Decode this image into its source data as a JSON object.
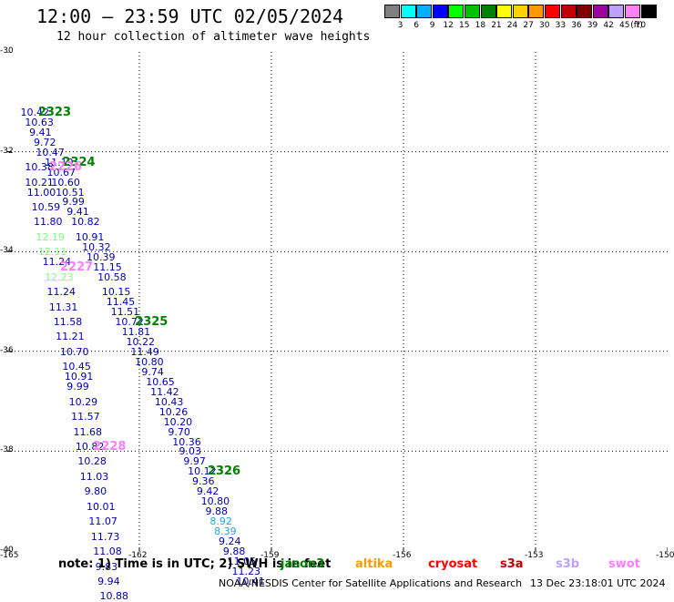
{
  "header": {
    "title": "12:00 — 23:59 UTC 02/05/2024",
    "subtitle": "12 hour collection of altimeter wave heights"
  },
  "legend": {
    "unit": "(ft)",
    "items": [
      {
        "label": "3",
        "color": "#808080"
      },
      {
        "label": "6",
        "color": "#00ffff"
      },
      {
        "label": "9",
        "color": "#00b0ff"
      },
      {
        "label": "12",
        "color": "#0000ff"
      },
      {
        "label": "15",
        "color": "#00ff00"
      },
      {
        "label": "18",
        "color": "#00c000"
      },
      {
        "label": "21",
        "color": "#008000"
      },
      {
        "label": "24",
        "color": "#ffff00"
      },
      {
        "label": "27",
        "color": "#ffd000"
      },
      {
        "label": "30",
        "color": "#ff9900"
      },
      {
        "label": "33",
        "color": "#ff0000"
      },
      {
        "label": "36",
        "color": "#c00000"
      },
      {
        "label": "39",
        "color": "#800000"
      },
      {
        "label": "42",
        "color": "#a000a0"
      },
      {
        "label": "45",
        "color": "#c0a0ff"
      },
      {
        "label": "70",
        "color": "#ff80ff"
      },
      {
        "label": "",
        "color": "#000000"
      }
    ]
  },
  "chart_data": {
    "type": "scatter",
    "title": "12:00 — 23:59 UTC 02/05/2024",
    "xlabel": "",
    "ylabel": "",
    "xlim": [
      -165,
      -150
    ],
    "ylim": [
      -40,
      -30
    ],
    "xticks": [
      -165,
      -162,
      -159,
      -156,
      -153,
      -150
    ],
    "yticks": [
      -30,
      -32,
      -34,
      -36,
      -38,
      -40
    ],
    "x_tick_labels": [
      "-165",
      "-162",
      "-159",
      "-156",
      "-153",
      "-150"
    ],
    "y_tick_labels": [
      "-30",
      "-32",
      "-34",
      "-36",
      "-38",
      "-40"
    ],
    "grid": true,
    "points": [
      {
        "v": "10.42",
        "x": -164.7,
        "y": -31.22,
        "c": "#0000b0"
      },
      {
        "v": "10.63",
        "x": -164.6,
        "y": -31.42,
        "c": "#0000b0"
      },
      {
        "v": "9.41",
        "x": -164.5,
        "y": -31.62,
        "c": "#0000b0"
      },
      {
        "v": "9.72",
        "x": -164.4,
        "y": -31.82,
        "c": "#0000b0"
      },
      {
        "v": "10.47",
        "x": -164.35,
        "y": -32.02,
        "c": "#0000b0"
      },
      {
        "v": "11.19",
        "x": -164.15,
        "y": -32.22,
        "c": "#0000b0"
      },
      {
        "v": "10.38",
        "x": -164.6,
        "y": -32.32,
        "c": "#0000b0"
      },
      {
        "v": "10.67",
        "x": -164.1,
        "y": -32.42,
        "c": "#0000b0"
      },
      {
        "v": "10.21",
        "x": -164.6,
        "y": -32.62,
        "c": "#0000b0"
      },
      {
        "v": "10.60",
        "x": -164.0,
        "y": -32.62,
        "c": "#0000b0"
      },
      {
        "v": "11.00",
        "x": -164.55,
        "y": -32.82,
        "c": "#0000b0"
      },
      {
        "v": "10.51",
        "x": -163.9,
        "y": -32.82,
        "c": "#0000b0"
      },
      {
        "v": "9.99",
        "x": -163.75,
        "y": -33.02,
        "c": "#0000b0"
      },
      {
        "v": "10.59",
        "x": -164.45,
        "y": -33.12,
        "c": "#0000b0"
      },
      {
        "v": "9.41",
        "x": -163.65,
        "y": -33.22,
        "c": "#0000b0"
      },
      {
        "v": "11.80",
        "x": -164.4,
        "y": -33.42,
        "c": "#0000b0"
      },
      {
        "v": "10.82",
        "x": -163.55,
        "y": -33.42,
        "c": "#0000b0"
      },
      {
        "v": "12.19",
        "x": -164.35,
        "y": -33.72,
        "c": "#80ff80"
      },
      {
        "v": "10.91",
        "x": -163.45,
        "y": -33.72,
        "c": "#0000b0"
      },
      {
        "v": "10.32",
        "x": -163.3,
        "y": -33.92,
        "c": "#0000b0"
      },
      {
        "v": "12.11",
        "x": -164.3,
        "y": -34.02,
        "c": "#80ff80"
      },
      {
        "v": "10.39",
        "x": -163.2,
        "y": -34.12,
        "c": "#0000b0"
      },
      {
        "v": "11.24",
        "x": -164.2,
        "y": -34.22,
        "c": "#0000b0"
      },
      {
        "v": "11.15",
        "x": -163.05,
        "y": -34.32,
        "c": "#0000b0"
      },
      {
        "v": "12.23",
        "x": -164.15,
        "y": -34.52,
        "c": "#80ff80"
      },
      {
        "v": "10.58",
        "x": -162.95,
        "y": -34.52,
        "c": "#0000b0"
      },
      {
        "v": "11.24",
        "x": -164.1,
        "y": -34.82,
        "c": "#0000b0"
      },
      {
        "v": "10.15",
        "x": -162.85,
        "y": -34.82,
        "c": "#0000b0"
      },
      {
        "v": "11.45",
        "x": -162.75,
        "y": -35.02,
        "c": "#0000b0"
      },
      {
        "v": "11.31",
        "x": -164.05,
        "y": -35.12,
        "c": "#0000b0"
      },
      {
        "v": "11.51",
        "x": -162.65,
        "y": -35.22,
        "c": "#0000b0"
      },
      {
        "v": "11.58",
        "x": -163.95,
        "y": -35.42,
        "c": "#0000b0"
      },
      {
        "v": "10.72",
        "x": -162.55,
        "y": -35.42,
        "c": "#0000b0"
      },
      {
        "v": "11.81",
        "x": -162.4,
        "y": -35.62,
        "c": "#0000b0"
      },
      {
        "v": "11.21",
        "x": -163.9,
        "y": -35.72,
        "c": "#0000b0"
      },
      {
        "v": "10.22",
        "x": -162.3,
        "y": -35.82,
        "c": "#0000b0"
      },
      {
        "v": "10.70",
        "x": -163.8,
        "y": -36.02,
        "c": "#0000b0"
      },
      {
        "v": "11.49",
        "x": -162.2,
        "y": -36.02,
        "c": "#0000b0"
      },
      {
        "v": "10.80",
        "x": -162.1,
        "y": -36.22,
        "c": "#0000b0"
      },
      {
        "v": "10.45",
        "x": -163.75,
        "y": -36.32,
        "c": "#0000b0"
      },
      {
        "v": "9.74",
        "x": -161.95,
        "y": -36.42,
        "c": "#0000b0"
      },
      {
        "v": "10.91",
        "x": -163.7,
        "y": -36.52,
        "c": "#0000b0"
      },
      {
        "v": "10.65",
        "x": -161.85,
        "y": -36.62,
        "c": "#0000b0"
      },
      {
        "v": "9.99",
        "x": -163.65,
        "y": -36.72,
        "c": "#0000b0"
      },
      {
        "v": "11.42",
        "x": -161.75,
        "y": -36.82,
        "c": "#0000b0"
      },
      {
        "v": "10.29",
        "x": -163.6,
        "y": -37.02,
        "c": "#0000b0"
      },
      {
        "v": "10.43",
        "x": -161.65,
        "y": -37.02,
        "c": "#0000b0"
      },
      {
        "v": "10.26",
        "x": -161.55,
        "y": -37.22,
        "c": "#0000b0"
      },
      {
        "v": "11.57",
        "x": -163.55,
        "y": -37.32,
        "c": "#0000b0"
      },
      {
        "v": "10.20",
        "x": -161.45,
        "y": -37.42,
        "c": "#0000b0"
      },
      {
        "v": "11.68",
        "x": -163.5,
        "y": -37.62,
        "c": "#0000b0"
      },
      {
        "v": "9.70",
        "x": -161.35,
        "y": -37.62,
        "c": "#0000b0"
      },
      {
        "v": "10.36",
        "x": -161.25,
        "y": -37.82,
        "c": "#0000b0"
      },
      {
        "v": "10.82",
        "x": -163.45,
        "y": -37.92,
        "c": "#0000b0"
      },
      {
        "v": "9.03",
        "x": -161.1,
        "y": -38.02,
        "c": "#0000b0"
      },
      {
        "v": "10.28",
        "x": -163.4,
        "y": -38.22,
        "c": "#0000b0"
      },
      {
        "v": "9.97",
        "x": -161.0,
        "y": -38.22,
        "c": "#0000b0"
      },
      {
        "v": "10.12",
        "x": -160.9,
        "y": -38.42,
        "c": "#0000b0"
      },
      {
        "v": "11.03",
        "x": -163.35,
        "y": -38.52,
        "c": "#0000b0"
      },
      {
        "v": "9.36",
        "x": -160.8,
        "y": -38.62,
        "c": "#0000b0"
      },
      {
        "v": "9.80",
        "x": -163.25,
        "y": -38.82,
        "c": "#0000b0"
      },
      {
        "v": "9.42",
        "x": -160.7,
        "y": -38.82,
        "c": "#0000b0"
      },
      {
        "v": "10.80",
        "x": -160.6,
        "y": -39.02,
        "c": "#0000b0"
      },
      {
        "v": "10.01",
        "x": -163.2,
        "y": -39.12,
        "c": "#0000b0"
      },
      {
        "v": "9.88",
        "x": -160.5,
        "y": -39.22,
        "c": "#0000b0"
      },
      {
        "v": "11.07",
        "x": -163.15,
        "y": -39.42,
        "c": "#0000b0"
      },
      {
        "v": "8.92",
        "x": -160.4,
        "y": -39.42,
        "c": "#20a8e0"
      },
      {
        "v": "8.39",
        "x": -160.3,
        "y": -39.62,
        "c": "#20a8e0"
      },
      {
        "v": "11.73",
        "x": -163.1,
        "y": -39.72,
        "c": "#0000b0"
      },
      {
        "v": "9.24",
        "x": -160.2,
        "y": -39.82,
        "c": "#0000b0"
      },
      {
        "v": "11.08",
        "x": -163.05,
        "y": -40.02,
        "c": "#0000b0"
      },
      {
        "v": "9.88",
        "x": -160.1,
        "y": -40.02,
        "c": "#0000b0"
      },
      {
        "v": "11.05",
        "x": -160.0,
        "y": -40.22,
        "c": "#0000b0"
      },
      {
        "v": "9.83",
        "x": -163.0,
        "y": -40.32,
        "c": "#0000b0"
      },
      {
        "v": "11.23",
        "x": -159.9,
        "y": -40.42,
        "c": "#0000b0"
      },
      {
        "v": "9.94",
        "x": -162.95,
        "y": -40.62,
        "c": "#0000b0"
      },
      {
        "v": "10.41",
        "x": -159.8,
        "y": -40.62,
        "c": "#0000b0"
      },
      {
        "v": "10.88",
        "x": -162.9,
        "y": -40.92,
        "c": "#0000b0"
      }
    ],
    "pass_labels": [
      {
        "text": "2323",
        "x": -164.3,
        "y": -31.22,
        "c": "#008000"
      },
      {
        "text": "2324",
        "x": -163.75,
        "y": -32.22,
        "c": "#008000"
      },
      {
        "text": "2226",
        "x": -164.05,
        "y": -32.32,
        "c": "#ff80ff"
      },
      {
        "text": "2227",
        "x": -163.8,
        "y": -34.32,
        "c": "#ff80ff"
      },
      {
        "text": "2325",
        "x": -162.1,
        "y": -35.42,
        "c": "#008000"
      },
      {
        "text": "2228",
        "x": -163.05,
        "y": -37.92,
        "c": "#ff80ff"
      },
      {
        "text": "2326",
        "x": -160.45,
        "y": -38.42,
        "c": "#008000"
      }
    ]
  },
  "footer": {
    "note": "note: 1) Time is in UTC; 2) SWH is in feet",
    "satellites": [
      {
        "name": "jason3",
        "color": "#008000"
      },
      {
        "name": "altika",
        "color": "#ff9900"
      },
      {
        "name": "cryosat",
        "color": "#ff0000"
      },
      {
        "name": "s3a",
        "color": "#c00000"
      },
      {
        "name": "s3b",
        "color": "#c0a0ff"
      },
      {
        "name": "swot",
        "color": "#ff80ff"
      }
    ],
    "credit": "NOAA/NESDIS Center for Satellite Applications and Research",
    "timestamp": "13 Dec 23:18:01 UTC 2024"
  }
}
